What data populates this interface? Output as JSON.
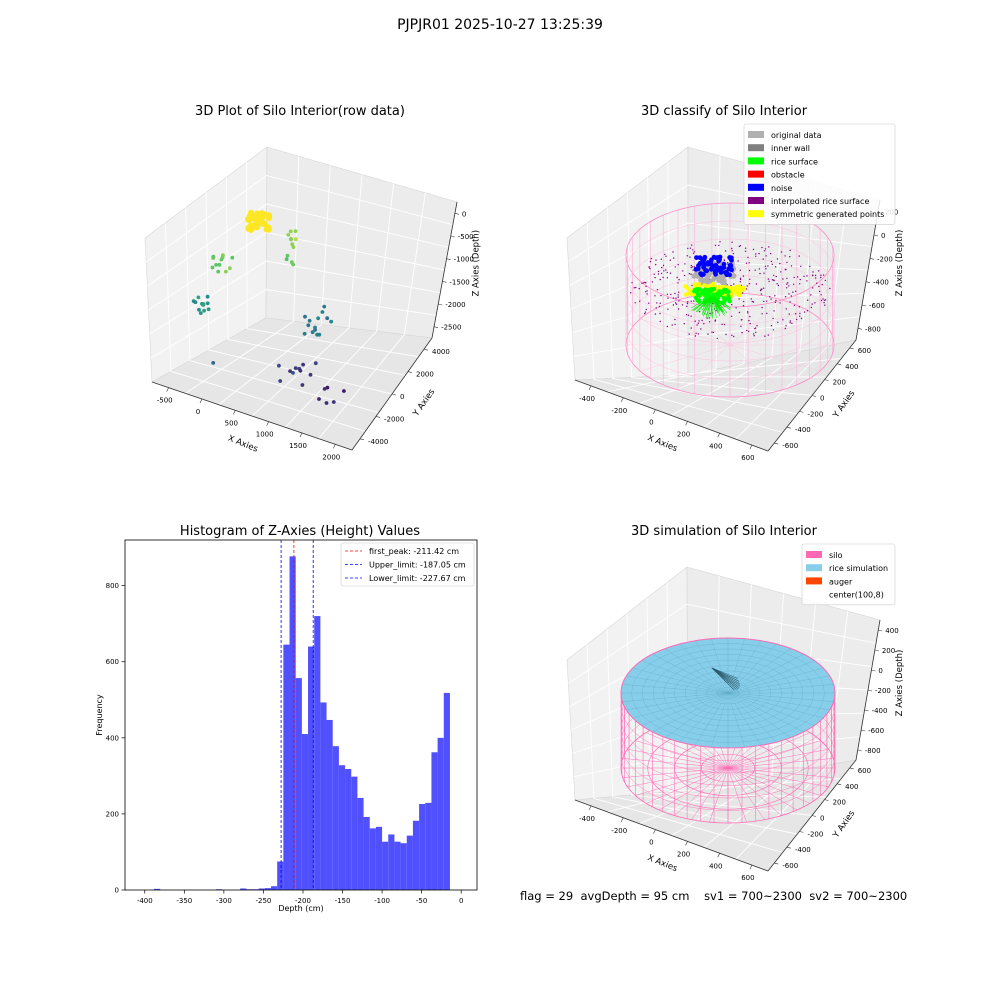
{
  "figure": {
    "suptitle": "PJPJR01 2025-10-27 13:25:39",
    "status": {
      "flag": "flag = 29",
      "avg_depth": "avgDepth = 95 cm",
      "sv1": "sv1 = 700~2300",
      "sv2": "sv2 = 700~2300"
    }
  },
  "chart_data": [
    {
      "type": "scatter",
      "title": "3D Plot of Silo Interior(row data)",
      "xlabel": "X Axies",
      "ylabel": "Y Axies",
      "zlabel": "Z Axies (Depth)",
      "x_ticks": [
        "-500",
        "0",
        "500",
        "1000",
        "1500",
        "2000"
      ],
      "y_ticks": [
        "-4000",
        "-2000",
        "0",
        "2000",
        "4000"
      ],
      "z_ticks": [
        "0",
        "-500",
        "-1000",
        "-1500",
        "-2000",
        "-2500"
      ],
      "xlim": [
        -700,
        2200
      ],
      "ylim": [
        -4500,
        4500
      ],
      "zlim": [
        -2700,
        100
      ],
      "colormap": "viridis",
      "grid": true
    },
    {
      "type": "scatter",
      "title": "3D classify of Silo Interior",
      "xlabel": "X Axies",
      "ylabel": "Y Axies",
      "zlabel": "Z Axies (Depth)",
      "x_ticks": [
        "-400",
        "-200",
        "0",
        "200",
        "400",
        "600"
      ],
      "y_ticks": [
        "-600",
        "-400",
        "-200",
        "0",
        "200",
        "400",
        "600"
      ],
      "z_ticks": [
        "200",
        "0",
        "-200",
        "-400",
        "-600",
        "-800"
      ],
      "legend": [
        {
          "label": "original data",
          "color": "#b0b0b0"
        },
        {
          "label": "inner wall",
          "color": "#808080"
        },
        {
          "label": "rice surface",
          "color": "#00ff00"
        },
        {
          "label": "obstacle",
          "color": "#ff0000"
        },
        {
          "label": "noise",
          "color": "#0000ff"
        },
        {
          "label": "interpolated rice surface",
          "color": "#800080"
        },
        {
          "label": "symmetric generated points",
          "color": "#ffff00"
        }
      ],
      "legend_loc": "upper right",
      "grid": true
    },
    {
      "type": "bar",
      "title": "Histogram of Z-Axies (Height) Values",
      "xlabel": "Depth (cm)",
      "ylabel": "Frequency",
      "xlim": [
        -425,
        20
      ],
      "ylim": [
        0,
        920
      ],
      "x_ticks": [
        "-400",
        "-350",
        "-300",
        "-250",
        "-200",
        "-150",
        "-100",
        "-50",
        "0"
      ],
      "y_ticks": [
        "0",
        "200",
        "400",
        "600",
        "800"
      ],
      "bin_width": 7.8,
      "bins": [
        {
          "x": -388.3,
          "count": 3
        },
        {
          "x": -310.0,
          "count": 2
        },
        {
          "x": -279.4,
          "count": 4
        },
        {
          "x": -271.6,
          "count": 2
        },
        {
          "x": -263.8,
          "count": 2
        },
        {
          "x": -256.0,
          "count": 4
        },
        {
          "x": -248.2,
          "count": 5
        },
        {
          "x": -240.4,
          "count": 10
        },
        {
          "x": -232.6,
          "count": 75
        },
        {
          "x": -224.8,
          "count": 645
        },
        {
          "x": -217.0,
          "count": 877
        },
        {
          "x": -209.2,
          "count": 557
        },
        {
          "x": -201.4,
          "count": 410
        },
        {
          "x": -193.6,
          "count": 640
        },
        {
          "x": -185.8,
          "count": 720
        },
        {
          "x": -178.0,
          "count": 493
        },
        {
          "x": -170.2,
          "count": 447
        },
        {
          "x": -162.4,
          "count": 378
        },
        {
          "x": -154.6,
          "count": 328
        },
        {
          "x": -146.8,
          "count": 318
        },
        {
          "x": -139.0,
          "count": 298
        },
        {
          "x": -131.2,
          "count": 242
        },
        {
          "x": -123.4,
          "count": 192
        },
        {
          "x": -115.6,
          "count": 162
        },
        {
          "x": -107.8,
          "count": 166
        },
        {
          "x": -100.0,
          "count": 127
        },
        {
          "x": -92.2,
          "count": 146
        },
        {
          "x": -84.4,
          "count": 127
        },
        {
          "x": -76.6,
          "count": 123
        },
        {
          "x": -68.8,
          "count": 143
        },
        {
          "x": -61.0,
          "count": 182
        },
        {
          "x": -53.2,
          "count": 226
        },
        {
          "x": -45.4,
          "count": 229
        },
        {
          "x": -37.6,
          "count": 362
        },
        {
          "x": -29.8,
          "count": 400
        },
        {
          "x": -22.0,
          "count": 518
        }
      ],
      "vlines": [
        {
          "x": -211.42,
          "color": "#ff0000",
          "label": "first_peak: -211.42 cm"
        },
        {
          "x": -187.05,
          "color": "#0000ff",
          "label": "Upper_limit: -187.05 cm"
        },
        {
          "x": -227.67,
          "color": "#0000ff",
          "label": "Lower_limit: -227.67 cm"
        }
      ],
      "bar_color": "#5050ff",
      "legend_loc": "upper right",
      "grid": false
    },
    {
      "type": "scatter",
      "title": "3D simulation of Silo Interior",
      "xlabel": "X Axies",
      "ylabel": "Y Axies",
      "zlabel": "Z Axies (Depth)",
      "x_ticks": [
        "-400",
        "-200",
        "0",
        "200",
        "400",
        "600"
      ],
      "y_ticks": [
        "-600",
        "-400",
        "-200",
        "0",
        "200",
        "400",
        "600"
      ],
      "z_ticks": [
        "400",
        "200",
        "0",
        "-200",
        "-400",
        "-600",
        "-800"
      ],
      "legend": [
        {
          "label": "silo",
          "color": "#ff69b4"
        },
        {
          "label": "rice simulation",
          "color": "#87ceeb"
        },
        {
          "label": "auger",
          "color": "#ff4500"
        },
        {
          "label": "center(100,8)",
          "color": "#ffffff"
        }
      ],
      "legend_loc": "upper right",
      "grid": true
    }
  ]
}
